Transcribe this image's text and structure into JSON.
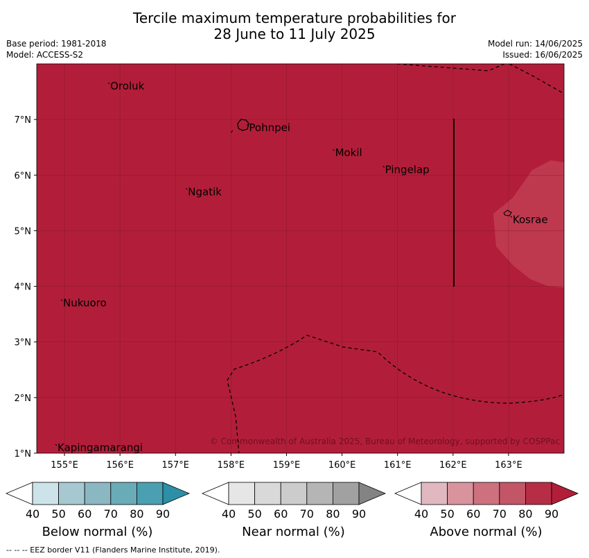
{
  "title": {
    "line1": "Tercile maximum temperature probabilities for",
    "line2": "28 June to 11 July 2025"
  },
  "meta_left": {
    "base_period": "Base period: 1981-2018",
    "model": "Model: ACCESS-S2"
  },
  "meta_right": {
    "model_run": "Model run: 14/06/2025",
    "issued": "Issued: 16/06/2025"
  },
  "map": {
    "lon_range": [
      154.5,
      164.0
    ],
    "lat_range": [
      1.0,
      8.0
    ],
    "background_color": "#b21e39",
    "lon_ticks": [
      "155°E",
      "156°E",
      "157°E",
      "158°E",
      "159°E",
      "160°E",
      "161°E",
      "162°E",
      "163°E"
    ],
    "lat_ticks": [
      "7°N",
      "6°N",
      "5°N",
      "4°N",
      "3°N",
      "2°N",
      "1°N"
    ],
    "places": [
      {
        "name": "Oroluk",
        "lon": 155.8,
        "lat": 7.6
      },
      {
        "name": "Pohnpei",
        "lon": 158.3,
        "lat": 6.85
      },
      {
        "name": "Mokil",
        "lon": 159.85,
        "lat": 6.4
      },
      {
        "name": "Pingelap",
        "lon": 160.75,
        "lat": 6.1
      },
      {
        "name": "Ngatik",
        "lon": 157.2,
        "lat": 5.7
      },
      {
        "name": "Kosrae",
        "lon": 163.05,
        "lat": 5.2
      },
      {
        "name": "Nukuoro",
        "lon": 154.95,
        "lat": 3.7
      },
      {
        "name": "Kapingamarangi",
        "lon": 154.85,
        "lat": 1.1
      }
    ],
    "copyright": "© Commonwealth of Australia 2025, Bureau of Meteorology, supported by COSPPac"
  },
  "colorbars": [
    {
      "label": "Below normal (%)",
      "colors": [
        "#ffffff",
        "#cce3e9",
        "#a6c8d0",
        "#8ab7c2",
        "#6aabb8",
        "#4aa0b0",
        "#2c8fa6"
      ]
    },
    {
      "label": "Near normal (%)",
      "colors": [
        "#ffffff",
        "#e6e6e6",
        "#d9d9d9",
        "#cccccc",
        "#b5b5b5",
        "#a1a1a1",
        "#838383"
      ]
    },
    {
      "label": "Above normal (%)",
      "colors": [
        "#ffffff",
        "#e2b8c0",
        "#d8939d",
        "#cd717e",
        "#c25566",
        "#b72d46",
        "#b21e39"
      ]
    }
  ],
  "colorbar_ticks": [
    "40",
    "50",
    "60",
    "70",
    "80",
    "90"
  ],
  "footnote": "-- -- -- EEZ border V11 (Flanders Marine Institute, 2019)."
}
